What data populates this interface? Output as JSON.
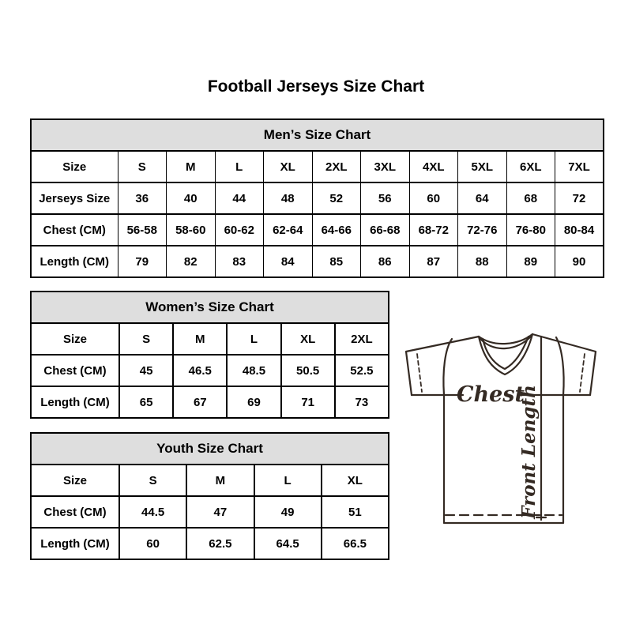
{
  "title": "Football Jerseys Size Chart",
  "chart_data": [
    {
      "type": "table",
      "name": "men",
      "title": "Men’s Size Chart",
      "rows": [
        [
          "Size",
          "S",
          "M",
          "L",
          "XL",
          "2XL",
          "3XL",
          "4XL",
          "5XL",
          "6XL",
          "7XL"
        ],
        [
          "Jerseys Size",
          "36",
          "40",
          "44",
          "48",
          "52",
          "56",
          "60",
          "64",
          "68",
          "72"
        ],
        [
          "Chest (CM)",
          "56-58",
          "58-60",
          "60-62",
          "62-64",
          "64-66",
          "66-68",
          "68-72",
          "72-76",
          "76-80",
          "80-84"
        ],
        [
          "Length (CM)",
          "79",
          "82",
          "83",
          "84",
          "85",
          "86",
          "87",
          "88",
          "89",
          "90"
        ]
      ]
    },
    {
      "type": "table",
      "name": "women",
      "title": "Women’s Size Chart",
      "rows": [
        [
          "Size",
          "S",
          "M",
          "L",
          "XL",
          "2XL"
        ],
        [
          "Chest (CM)",
          "45",
          "46.5",
          "48.5",
          "50.5",
          "52.5"
        ],
        [
          "Length (CM)",
          "65",
          "67",
          "69",
          "71",
          "73"
        ]
      ]
    },
    {
      "type": "table",
      "name": "youth",
      "title": "Youth Size Chart",
      "rows": [
        [
          "Size",
          "S",
          "M",
          "L",
          "XL"
        ],
        [
          "Chest (CM)",
          "44.5",
          "47",
          "49",
          "51"
        ],
        [
          "Length (CM)",
          "60",
          "62.5",
          "64.5",
          "66.5"
        ]
      ]
    }
  ],
  "diagram": {
    "chest_label": "Chest",
    "front_length_label": "Front Length"
  },
  "colors": {
    "section_header_bg": "#dedede",
    "table_border": "#000000",
    "text": "#000000",
    "diagram_line": "#342a23"
  }
}
